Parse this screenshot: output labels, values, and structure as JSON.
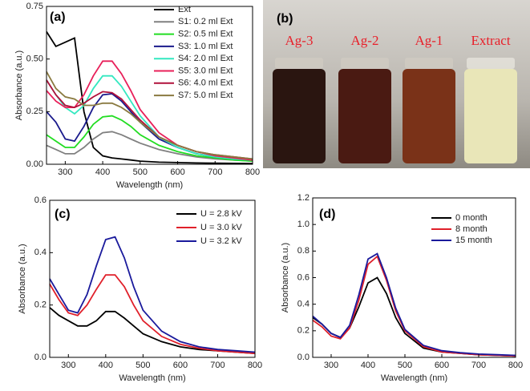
{
  "chart_data": [
    {
      "type": "line",
      "title": "(a)",
      "xlabel": "Wavelength (nm)",
      "ylabel": "Absorbance (a.u.)",
      "legend": "upper right",
      "xlim": [
        250,
        800
      ],
      "ylim": [
        0,
        0.75
      ],
      "xticks": [
        300,
        400,
        500,
        600,
        700,
        800
      ],
      "yticks": [
        {
          "value": 0,
          "label": "0.00"
        },
        {
          "value": 0.25,
          "label": "0.25"
        },
        {
          "value": 0.5,
          "label": "0.50"
        },
        {
          "value": 0.75,
          "label": "0.75"
        }
      ],
      "x": [
        250,
        275,
        300,
        325,
        350,
        375,
        400,
        425,
        450,
        475,
        500,
        550,
        600,
        650,
        700,
        750,
        800
      ],
      "series": [
        {
          "name": "Ext",
          "color": "#000000",
          "values": [
            0.63,
            0.56,
            0.58,
            0.6,
            0.25,
            0.08,
            0.04,
            0.03,
            0.025,
            0.02,
            0.015,
            0.01,
            0.008,
            0.006,
            0.005,
            0.004,
            0.003
          ]
        },
        {
          "name": "S1: 0.2 ml Ext",
          "color": "#808080",
          "values": [
            0.09,
            0.07,
            0.05,
            0.05,
            0.08,
            0.12,
            0.15,
            0.155,
            0.14,
            0.12,
            0.1,
            0.07,
            0.05,
            0.035,
            0.025,
            0.02,
            0.015
          ]
        },
        {
          "name": "S2: 0.5 ml Ext",
          "color": "#22dd22",
          "values": [
            0.14,
            0.11,
            0.08,
            0.08,
            0.13,
            0.19,
            0.225,
            0.23,
            0.21,
            0.18,
            0.14,
            0.09,
            0.06,
            0.04,
            0.03,
            0.02,
            0.015
          ]
        },
        {
          "name": "S3: 1.0 ml Ext",
          "color": "#1a1a8c",
          "values": [
            0.25,
            0.2,
            0.12,
            0.11,
            0.18,
            0.27,
            0.33,
            0.335,
            0.3,
            0.25,
            0.2,
            0.12,
            0.08,
            0.05,
            0.035,
            0.025,
            0.02
          ]
        },
        {
          "name": "S4: 2.0 ml Ext",
          "color": "#33e8c0",
          "values": [
            0.4,
            0.33,
            0.27,
            0.24,
            0.28,
            0.36,
            0.42,
            0.42,
            0.37,
            0.3,
            0.23,
            0.13,
            0.08,
            0.05,
            0.035,
            0.025,
            0.02
          ]
        },
        {
          "name": "S5: 3.0 ml Ext",
          "color": "#e8205a",
          "values": [
            0.35,
            0.3,
            0.27,
            0.27,
            0.33,
            0.42,
            0.49,
            0.49,
            0.43,
            0.35,
            0.26,
            0.15,
            0.09,
            0.06,
            0.04,
            0.03,
            0.02
          ]
        },
        {
          "name": "S6: 4.0 ml Ext",
          "color": "#b0103a",
          "values": [
            0.4,
            0.33,
            0.28,
            0.27,
            0.29,
            0.32,
            0.345,
            0.34,
            0.31,
            0.26,
            0.21,
            0.13,
            0.09,
            0.06,
            0.045,
            0.035,
            0.025
          ]
        },
        {
          "name": "S7: 5.0 ml Ext",
          "color": "#8a7a40",
          "values": [
            0.44,
            0.36,
            0.32,
            0.31,
            0.28,
            0.28,
            0.29,
            0.29,
            0.27,
            0.24,
            0.2,
            0.13,
            0.09,
            0.06,
            0.045,
            0.035,
            0.025
          ]
        }
      ]
    },
    {
      "type": "photo",
      "title": "(b)",
      "labels": [
        "Ag-3",
        "Ag-2",
        "Ag-1",
        "Extract"
      ]
    },
    {
      "type": "line",
      "title": "(c)",
      "xlabel": "Wavelength (nm)",
      "ylabel": "Absorbance (a.u.)",
      "legend": "upper right",
      "xlim": [
        250,
        800
      ],
      "ylim": [
        0,
        0.6
      ],
      "xticks": [
        300,
        400,
        500,
        600,
        700,
        800
      ],
      "yticks": [
        {
          "value": 0,
          "label": "0.0"
        },
        0.2,
        0.4,
        0.6
      ],
      "x": [
        250,
        275,
        300,
        325,
        350,
        375,
        400,
        425,
        450,
        475,
        500,
        550,
        600,
        650,
        700,
        750,
        800
      ],
      "series": [
        {
          "name": "U = 2.8 kV",
          "color": "#000000",
          "values": [
            0.19,
            0.16,
            0.14,
            0.12,
            0.12,
            0.14,
            0.175,
            0.175,
            0.15,
            0.12,
            0.09,
            0.06,
            0.04,
            0.03,
            0.025,
            0.02,
            0.015
          ]
        },
        {
          "name": "U = 3.0 kV",
          "color": "#e0202a",
          "values": [
            0.28,
            0.22,
            0.17,
            0.16,
            0.2,
            0.26,
            0.315,
            0.315,
            0.27,
            0.2,
            0.14,
            0.08,
            0.05,
            0.035,
            0.025,
            0.02,
            0.015
          ]
        },
        {
          "name": "U = 3.2 kV",
          "color": "#1a1a9c",
          "values": [
            0.3,
            0.24,
            0.18,
            0.17,
            0.24,
            0.35,
            0.45,
            0.46,
            0.38,
            0.27,
            0.18,
            0.1,
            0.06,
            0.04,
            0.03,
            0.025,
            0.02
          ]
        }
      ]
    },
    {
      "type": "line",
      "title": "(d)",
      "xlabel": "Wavelength (nm)",
      "ylabel": "Absorbance (a.u.)",
      "legend": "upper right",
      "xlim": [
        250,
        800
      ],
      "ylim": [
        0,
        1.2
      ],
      "xticks": [
        300,
        400,
        500,
        600,
        700,
        800
      ],
      "yticks": [
        {
          "value": 0,
          "label": "0.0"
        },
        0.2,
        0.4,
        0.6,
        0.8,
        {
          "value": 1,
          "label": "1.0"
        },
        1.2
      ],
      "x": [
        250,
        275,
        300,
        325,
        350,
        375,
        400,
        425,
        450,
        475,
        500,
        550,
        600,
        650,
        700,
        750,
        800
      ],
      "series": [
        {
          "name": "0 month",
          "color": "#000000",
          "values": [
            0.3,
            0.25,
            0.18,
            0.15,
            0.22,
            0.38,
            0.56,
            0.6,
            0.48,
            0.3,
            0.18,
            0.07,
            0.04,
            0.03,
            0.02,
            0.015,
            0.01
          ]
        },
        {
          "name": "8 month",
          "color": "#e0202a",
          "values": [
            0.28,
            0.23,
            0.16,
            0.14,
            0.22,
            0.43,
            0.7,
            0.76,
            0.58,
            0.35,
            0.2,
            0.08,
            0.04,
            0.03,
            0.02,
            0.015,
            0.01
          ]
        },
        {
          "name": "15 month",
          "color": "#1a1a9c",
          "values": [
            0.31,
            0.25,
            0.18,
            0.15,
            0.24,
            0.47,
            0.74,
            0.78,
            0.6,
            0.37,
            0.21,
            0.09,
            0.05,
            0.035,
            0.025,
            0.02,
            0.015
          ]
        }
      ]
    }
  ]
}
